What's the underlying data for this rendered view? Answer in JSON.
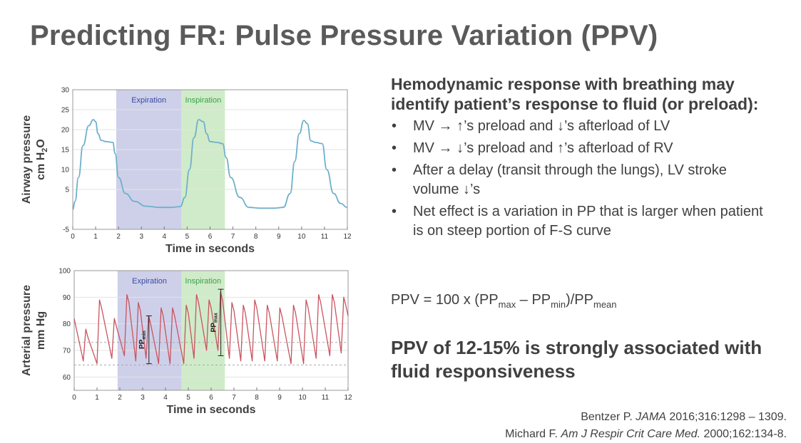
{
  "slide": {
    "title": "Predicting FR: Pulse Pressure Variation (PPV)",
    "heading": "Hemodynamic response with breathing may identify patient’s response to fluid (or preload):",
    "bullet_symbol": "•",
    "bullets": [
      "MV → ↑’s preload and ↓’s afterload of LV",
      "MV → ↓’s preload and ↑’s afterload of RV",
      "After a delay (transit through the lungs), LV stroke volume ↓’s",
      "Net effect is a variation in PP that is larger when patient is on steep portion of F-S curve"
    ],
    "formula": {
      "prefix": "PPV = 100 x (PP",
      "sub_max": "max",
      "mid": " – PP",
      "sub_min": "min",
      "close": ")/PP",
      "sub_mean": "mean"
    },
    "conclusion": "PPV of 12-15% is strongly associated with fluid responsiveness",
    "references": [
      {
        "author": "Bentzer P. ",
        "journal": "JAMA",
        "details": " 2016;316:1298 – 1309."
      },
      {
        "author": "Michard F. ",
        "journal": "Am J Respir Crit Care Med.",
        "details": " 2000;162:134-8."
      }
    ]
  },
  "colors": {
    "curve_airway": "#6fb0cc",
    "curve_arterial": "#c9545f",
    "expiration_band": "#c5c8e6",
    "inspiration_band": "#c8e8c0",
    "expiration_text": "#3a4aa0",
    "inspiration_text": "#3aa048",
    "text": "#404040"
  },
  "chart_data": [
    {
      "type": "line",
      "ylabel_line1": "Airway pressure",
      "ylabel_line2": "cm H",
      "ylabel_sub": "2",
      "ylabel_tail": "O",
      "xlabel": "Time in seconds",
      "xlim": [
        0,
        12
      ],
      "ylim": [
        -5,
        30
      ],
      "xticks": [
        0,
        1,
        2,
        3,
        4,
        5,
        6,
        7,
        8,
        9,
        10,
        11,
        12
      ],
      "yticks": [
        -5,
        5,
        10,
        15,
        20,
        25,
        30
      ],
      "bands": [
        {
          "label": "Expiration",
          "start": 1.9,
          "end": 4.75
        },
        {
          "label": "Inspiration",
          "start": 4.75,
          "end": 6.65
        }
      ],
      "series": [
        {
          "x": [
            0,
            0.1,
            0.25,
            0.45,
            0.7,
            0.9,
            1.0,
            1.1,
            1.25,
            1.45,
            1.75,
            1.85,
            2.0,
            2.3,
            2.7,
            3.2,
            3.8,
            4.3,
            4.7,
            4.9,
            5.1,
            5.3,
            5.5,
            5.7,
            5.85,
            6.0,
            6.3,
            6.55,
            6.7,
            6.9,
            7.3,
            7.7,
            8.2,
            8.8,
            9.2,
            9.5,
            9.7,
            9.9,
            10.1,
            10.25,
            10.4,
            10.6,
            10.9,
            11.1,
            11.4,
            11.7,
            12.0
          ],
          "y": [
            0,
            2,
            8,
            16,
            21,
            22.5,
            22,
            19,
            17.3,
            17,
            16.8,
            14,
            8,
            4,
            2,
            0.8,
            0.5,
            0.5,
            0.7,
            3,
            10,
            18,
            22.5,
            22,
            19,
            17,
            16.8,
            16.5,
            13,
            8,
            3,
            0.5,
            0.3,
            0.3,
            0.5,
            4,
            12,
            19,
            22.3,
            21.5,
            17.2,
            16.8,
            16.5,
            10,
            4,
            1.5,
            0.5
          ]
        }
      ]
    },
    {
      "type": "line",
      "ylabel_line1": "Arterial pressure",
      "ylabel_line2": "mm Hg",
      "xlabel": "Time in seconds",
      "xlim": [
        0,
        12
      ],
      "ylim": [
        55,
        100
      ],
      "xticks": [
        0,
        1,
        2,
        3,
        4,
        5,
        6,
        7,
        8,
        9,
        10,
        11,
        12
      ],
      "yticks": [
        60,
        70,
        80,
        90,
        100
      ],
      "bands": [
        {
          "label": "Expiration",
          "start": 1.9,
          "end": 4.7
        },
        {
          "label": "Inspiration",
          "start": 4.7,
          "end": 6.6
        }
      ],
      "start_value": 82,
      "beats": [
        {
          "t": 0.4,
          "min": 66,
          "max": 78
        },
        {
          "t": 1.0,
          "min": 65,
          "max": 89
        },
        {
          "t": 1.65,
          "min": 67,
          "max": 82
        },
        {
          "t": 2.2,
          "min": 68,
          "max": 91
        },
        {
          "t": 2.7,
          "min": 66,
          "max": 88
        },
        {
          "t": 3.15,
          "min": 67,
          "max": 83
        },
        {
          "t": 3.7,
          "min": 65,
          "max": 86
        },
        {
          "t": 4.2,
          "min": 65,
          "max": 86
        },
        {
          "t": 4.8,
          "min": 65,
          "max": 87
        },
        {
          "t": 5.25,
          "min": 67,
          "max": 91
        },
        {
          "t": 5.8,
          "min": 70,
          "max": 89
        },
        {
          "t": 6.3,
          "min": 70,
          "max": 92
        },
        {
          "t": 6.8,
          "min": 67,
          "max": 88
        },
        {
          "t": 7.3,
          "min": 66,
          "max": 87
        },
        {
          "t": 7.8,
          "min": 66,
          "max": 89
        },
        {
          "t": 8.35,
          "min": 66,
          "max": 87
        },
        {
          "t": 8.9,
          "min": 66,
          "max": 86
        },
        {
          "t": 9.5,
          "min": 65,
          "max": 87
        },
        {
          "t": 10.05,
          "min": 65,
          "max": 89
        },
        {
          "t": 10.6,
          "min": 67,
          "max": 91
        },
        {
          "t": 11.2,
          "min": 68,
          "max": 91
        },
        {
          "t": 11.7,
          "min": 69,
          "max": 90
        }
      ],
      "end_value": 83,
      "dashed_levels": [
        64.5,
        73
      ],
      "annotations": [
        {
          "label": "PP",
          "sub": "min",
          "t": 3.15,
          "low": 65,
          "high": 83
        },
        {
          "label": "PP",
          "sub": "max",
          "t": 6.3,
          "low": 68,
          "high": 93
        }
      ]
    }
  ]
}
